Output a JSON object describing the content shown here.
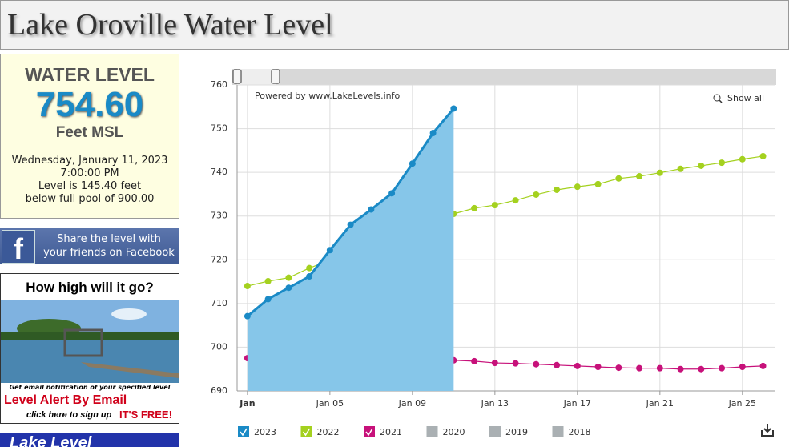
{
  "header": {
    "title": "Lake Oroville Water Level"
  },
  "sidebar": {
    "heading": "WATER LEVEL",
    "level": "754.60",
    "unit": "Feet MSL",
    "date": "Wednesday, January 11, 2023",
    "time": "7:00:00 PM",
    "line1": "Level is 145.40 feet",
    "line2": "below full pool of 900.00",
    "facebook_line1": "Share the level with",
    "facebook_line2": "your friends on Facebook",
    "promo_title": "How high will it go?",
    "promo_note": "Get email notification of your specified level",
    "promo_alert": "Level Alert By Email",
    "promo_signup": "click here to sign up",
    "promo_free": "IT'S FREE!",
    "bottom_banner": "Lake Level"
  },
  "chart_data": {
    "type": "line",
    "powered_by": "Powered by www.LakeLevels.info",
    "zoom_label": "Show all",
    "x": [
      1,
      2,
      3,
      4,
      5,
      6,
      7,
      8,
      9,
      10,
      11,
      12,
      13,
      14,
      15,
      16,
      17,
      18,
      19,
      20,
      21,
      22,
      23,
      24,
      25,
      26
    ],
    "xlim": [
      0.5,
      26.6
    ],
    "xticks": [
      {
        "value": 1,
        "label": "Jan"
      },
      {
        "value": 5,
        "label": "Jan 05"
      },
      {
        "value": 9,
        "label": "Jan 09"
      },
      {
        "value": 13,
        "label": "Jan 13"
      },
      {
        "value": 17,
        "label": "Jan 17"
      },
      {
        "value": 21,
        "label": "Jan 21"
      },
      {
        "value": 25,
        "label": "Jan 25"
      }
    ],
    "ylim": [
      690,
      760
    ],
    "yticks": [
      690,
      700,
      710,
      720,
      730,
      740,
      750,
      760
    ],
    "grid": true,
    "series": [
      {
        "name": "2023",
        "color": "#1a8ac6",
        "area": true,
        "values": [
          707.1,
          711.0,
          713.6,
          716.2,
          722.2,
          728.0,
          731.5,
          735.2,
          742.0,
          749.0,
          754.6,
          null,
          null,
          null,
          null,
          null,
          null,
          null,
          null,
          null,
          null,
          null,
          null,
          null,
          null,
          null
        ]
      },
      {
        "name": "2022",
        "color": "#a4d11f",
        "area": false,
        "values": [
          714.0,
          715.1,
          715.9,
          718.1,
          719.9,
          721.9,
          723.7,
          725.8,
          727.8,
          729.4,
          730.5,
          731.8,
          732.5,
          733.6,
          734.9,
          736.0,
          736.7,
          737.3,
          738.6,
          739.1,
          739.9,
          740.8,
          741.5,
          742.2,
          743.0,
          743.7
        ]
      },
      {
        "name": "2021",
        "color": "#c7117a",
        "area": false,
        "values": [
          697.5,
          697.4,
          697.2,
          697.2,
          697.5,
          697.5,
          697.7,
          697.4,
          697.4,
          697.2,
          697.0,
          696.8,
          696.4,
          696.3,
          696.1,
          695.9,
          695.7,
          695.5,
          695.3,
          695.2,
          695.2,
          695.0,
          695.0,
          695.2,
          695.5,
          695.7
        ]
      }
    ],
    "disabled_legend": [
      "2020",
      "2019",
      "2018"
    ],
    "disabled_color": "#aab0b3"
  }
}
